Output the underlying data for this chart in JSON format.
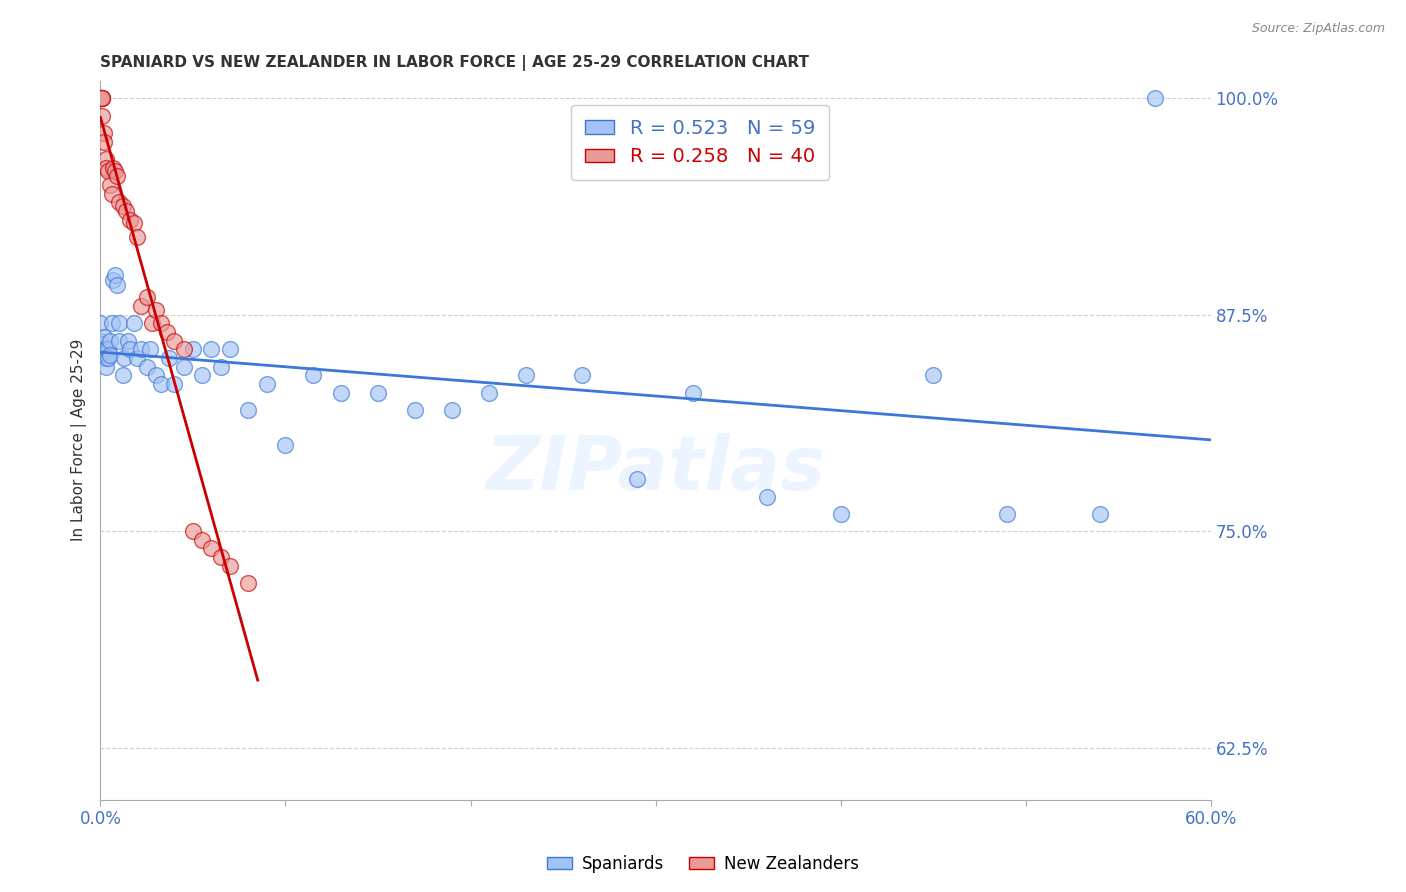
{
  "title": "SPANIARD VS NEW ZEALANDER IN LABOR FORCE | AGE 25-29 CORRELATION CHART",
  "source": "Source: ZipAtlas.com",
  "ylabel": "In Labor Force | Age 25-29",
  "xlim": [
    0.0,
    0.6
  ],
  "ylim": [
    0.595,
    1.01
  ],
  "ytick_positions": [
    0.625,
    0.75,
    0.875,
    1.0
  ],
  "ytick_labels": [
    "62.5%",
    "75.0%",
    "87.5%",
    "100.0%"
  ],
  "blue_color": "#a4c2f4",
  "pink_color": "#ea9999",
  "blue_line_color": "#3c78d8",
  "pink_line_color": "#cc0000",
  "R_blue": 0.523,
  "N_blue": 59,
  "R_pink": 0.258,
  "N_pink": 40,
  "watermark": "ZIPatlas",
  "spaniards_x": [
    0.0,
    0.0,
    0.0,
    0.001,
    0.001,
    0.002,
    0.002,
    0.002,
    0.003,
    0.003,
    0.003,
    0.004,
    0.004,
    0.005,
    0.005,
    0.006,
    0.007,
    0.008,
    0.009,
    0.01,
    0.01,
    0.012,
    0.013,
    0.015,
    0.016,
    0.018,
    0.02,
    0.022,
    0.025,
    0.027,
    0.03,
    0.033,
    0.037,
    0.04,
    0.045,
    0.05,
    0.055,
    0.06,
    0.065,
    0.07,
    0.08,
    0.09,
    0.1,
    0.115,
    0.13,
    0.15,
    0.17,
    0.19,
    0.21,
    0.23,
    0.26,
    0.29,
    0.32,
    0.36,
    0.4,
    0.45,
    0.49,
    0.54,
    0.57
  ],
  "spaniards_y": [
    0.87,
    0.86,
    0.855,
    0.858,
    0.852,
    0.862,
    0.855,
    0.85,
    0.855,
    0.85,
    0.845,
    0.855,
    0.85,
    0.86,
    0.852,
    0.87,
    0.895,
    0.898,
    0.892,
    0.87,
    0.86,
    0.84,
    0.85,
    0.86,
    0.855,
    0.87,
    0.85,
    0.855,
    0.845,
    0.855,
    0.84,
    0.835,
    0.85,
    0.835,
    0.845,
    0.855,
    0.84,
    0.855,
    0.845,
    0.855,
    0.82,
    0.835,
    0.8,
    0.84,
    0.83,
    0.83,
    0.82,
    0.82,
    0.83,
    0.84,
    0.84,
    0.78,
    0.83,
    0.77,
    0.76,
    0.84,
    0.76,
    0.76,
    1.0
  ],
  "nz_x": [
    0.0,
    0.0,
    0.0,
    0.0,
    0.0,
    0.0,
    0.001,
    0.001,
    0.001,
    0.001,
    0.002,
    0.002,
    0.003,
    0.003,
    0.004,
    0.005,
    0.006,
    0.007,
    0.008,
    0.009,
    0.01,
    0.012,
    0.014,
    0.016,
    0.018,
    0.02,
    0.022,
    0.025,
    0.028,
    0.03,
    0.033,
    0.036,
    0.04,
    0.045,
    0.05,
    0.055,
    0.06,
    0.065,
    0.07,
    0.08
  ],
  "nz_y": [
    1.0,
    1.0,
    1.0,
    1.0,
    1.0,
    1.0,
    1.0,
    1.0,
    1.0,
    0.99,
    0.98,
    0.975,
    0.965,
    0.96,
    0.958,
    0.95,
    0.945,
    0.96,
    0.958,
    0.955,
    0.94,
    0.938,
    0.935,
    0.93,
    0.928,
    0.92,
    0.88,
    0.885,
    0.87,
    0.878,
    0.87,
    0.865,
    0.86,
    0.855,
    0.75,
    0.745,
    0.74,
    0.735,
    0.73,
    0.72
  ]
}
